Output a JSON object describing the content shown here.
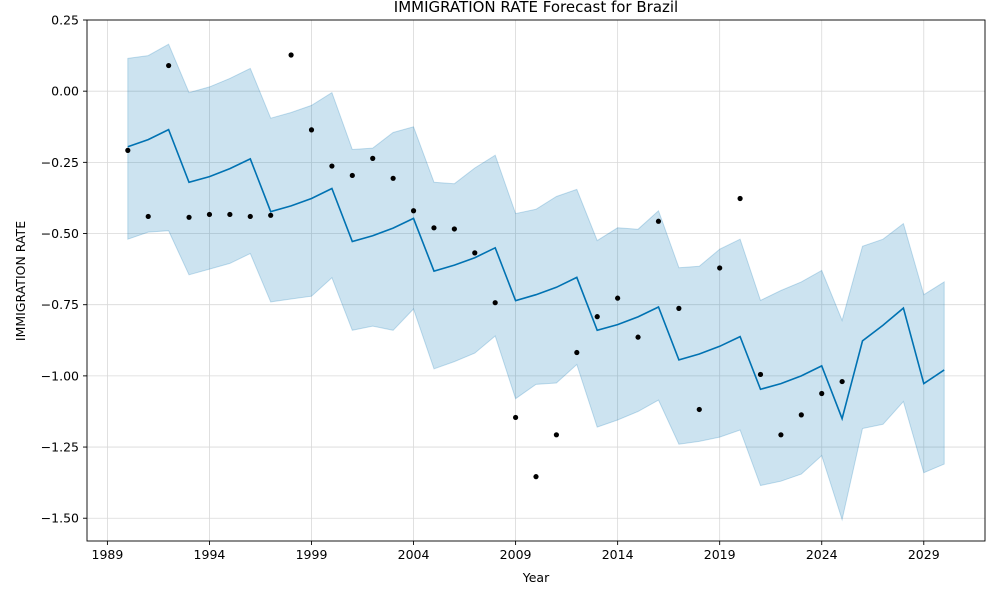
{
  "chart_data": {
    "type": "line",
    "title": "IMMIGRATION RATE Forecast for Brazil",
    "xlabel": "Year",
    "ylabel": "IMMIGRATION RATE",
    "xlim": [
      1988,
      2032
    ],
    "ylim": [
      -1.58,
      0.25
    ],
    "x_ticks": [
      1989,
      1994,
      1999,
      2004,
      2009,
      2014,
      2019,
      2024,
      2029
    ],
    "y_ticks": [
      0.25,
      0.0,
      -0.25,
      -0.5,
      -0.75,
      -1.0,
      -1.25,
      -1.5
    ],
    "y_tick_labels": [
      "0.25",
      "0.00",
      "−0.25",
      "−0.50",
      "−0.75",
      "−1.00",
      "−1.25",
      "−1.50"
    ],
    "grid": true,
    "colors": {
      "forecast": "#0072B2",
      "interval": "#0072B2",
      "observed": "#000000"
    },
    "x": [
      1990,
      1991,
      1992,
      1993,
      1994,
      1995,
      1996,
      1997,
      1998,
      1999,
      2000,
      2001,
      2002,
      2003,
      2004,
      2005,
      2006,
      2007,
      2008,
      2009,
      2010,
      2011,
      2012,
      2013,
      2014,
      2015,
      2016,
      2017,
      2018,
      2019,
      2020,
      2021,
      2022,
      2023,
      2024,
      2025,
      2026,
      2027,
      2028,
      2029,
      2030
    ],
    "series": [
      {
        "role": "forecast",
        "values": [
          -0.195,
          -0.17,
          -0.135,
          -0.32,
          -0.3,
          -0.272,
          -0.238,
          -0.423,
          -0.403,
          -0.377,
          -0.342,
          -0.528,
          -0.508,
          -0.481,
          -0.447,
          -0.632,
          -0.611,
          -0.585,
          -0.55,
          -0.736,
          -0.715,
          -0.689,
          -0.654,
          -0.84,
          -0.82,
          -0.793,
          -0.758,
          -0.944,
          -0.923,
          -0.896,
          -0.862,
          -1.047,
          -1.027,
          -1.0,
          -0.965,
          -1.15,
          -0.877,
          -0.822,
          -0.762,
          -1.027,
          -0.979
        ]
      },
      {
        "role": "interval_upper",
        "values": [
          0.115,
          0.125,
          0.165,
          -0.005,
          0.015,
          0.045,
          0.08,
          -0.095,
          -0.075,
          -0.05,
          -0.005,
          -0.205,
          -0.2,
          -0.145,
          -0.125,
          -0.32,
          -0.325,
          -0.27,
          -0.225,
          -0.43,
          -0.415,
          -0.37,
          -0.345,
          -0.525,
          -0.48,
          -0.485,
          -0.42,
          -0.62,
          -0.615,
          -0.555,
          -0.52,
          -0.735,
          -0.7,
          -0.67,
          -0.63,
          -0.805,
          -0.545,
          -0.52,
          -0.465,
          -0.715,
          -0.67
        ]
      },
      {
        "role": "interval_lower",
        "values": [
          -0.52,
          -0.495,
          -0.49,
          -0.645,
          -0.625,
          -0.605,
          -0.57,
          -0.74,
          -0.73,
          -0.72,
          -0.655,
          -0.84,
          -0.825,
          -0.84,
          -0.765,
          -0.975,
          -0.95,
          -0.92,
          -0.86,
          -1.08,
          -1.03,
          -1.025,
          -0.96,
          -1.18,
          -1.155,
          -1.125,
          -1.085,
          -1.24,
          -1.23,
          -1.215,
          -1.19,
          -1.385,
          -1.37,
          -1.345,
          -1.28,
          -1.505,
          -1.185,
          -1.17,
          -1.09,
          -1.34,
          -1.31
        ]
      }
    ],
    "observed": {
      "x": [
        1990,
        1991,
        1992,
        1993,
        1994,
        1995,
        1996,
        1997,
        1998,
        1999,
        2000,
        2001,
        2002,
        2003,
        2004,
        2005,
        2006,
        2007,
        2008,
        2009,
        2010,
        2011,
        2012,
        2013,
        2014,
        2015,
        2016,
        2017,
        2018,
        2019,
        2020,
        2021,
        2022,
        2023,
        2024,
        2025
      ],
      "y": [
        -0.208,
        -0.44,
        0.09,
        -0.443,
        -0.433,
        -0.433,
        -0.44,
        -0.436,
        0.127,
        -0.136,
        -0.263,
        -0.296,
        -0.236,
        -0.306,
        -0.42,
        -0.48,
        -0.484,
        -0.568,
        -0.743,
        -1.146,
        -1.354,
        -1.207,
        -0.918,
        -0.792,
        -0.727,
        -0.864,
        -0.457,
        -0.763,
        -1.118,
        -0.621,
        -0.377,
        -0.995,
        -1.207,
        -1.137,
        -1.062,
        -1.02
      ]
    }
  }
}
